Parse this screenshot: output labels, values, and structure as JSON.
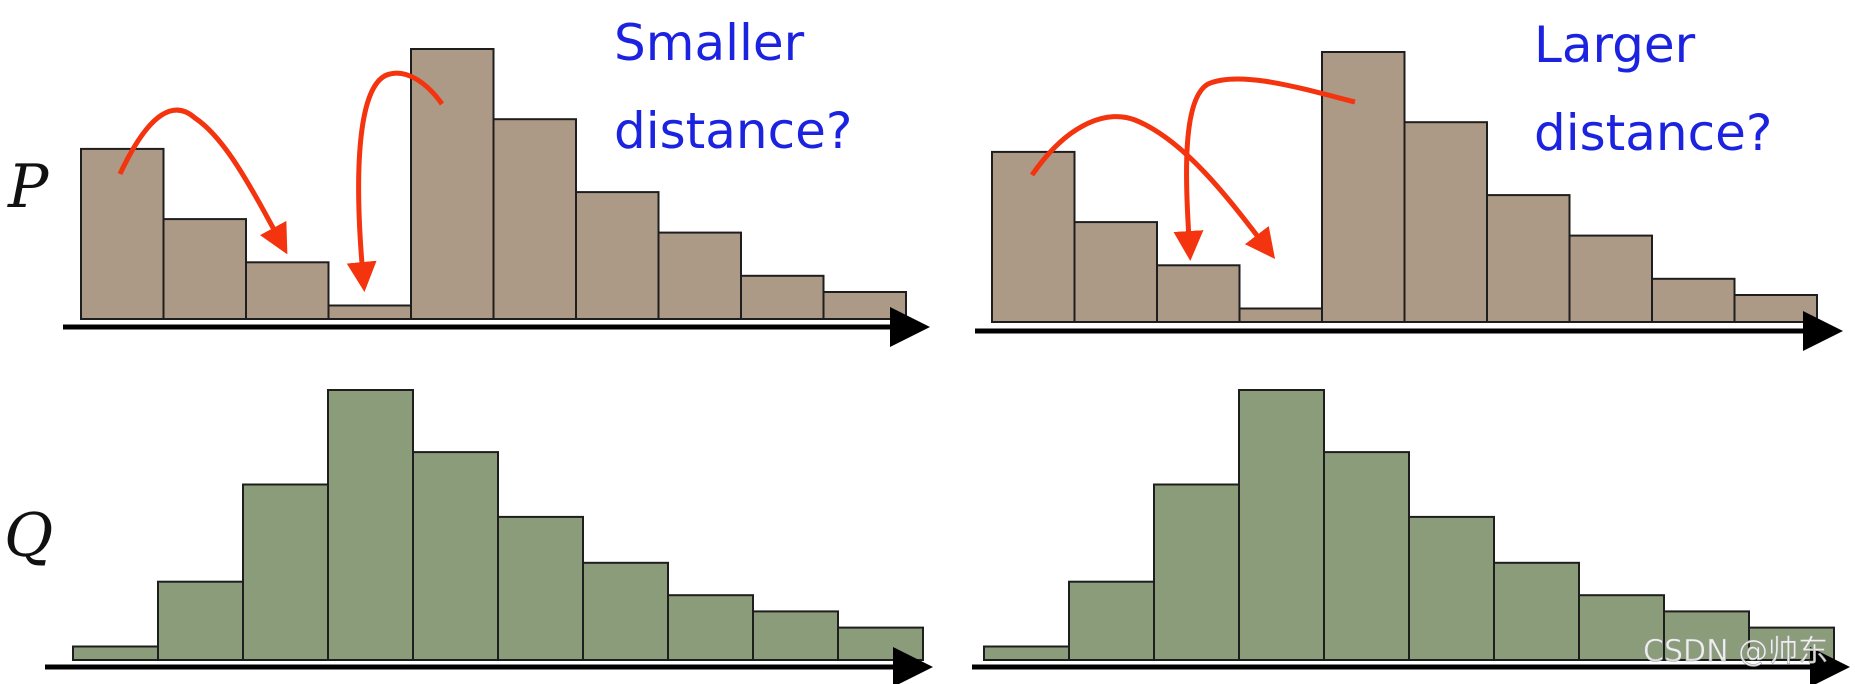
{
  "colors": {
    "p_bar": "#ad9a86",
    "q_bar": "#8a9c79",
    "bar_stroke": "#1e1e1e",
    "axis": "#000000",
    "arrow": "#f4330f",
    "caption": "#1b22e0"
  },
  "labels": {
    "row_p": "P",
    "row_q": "Q",
    "left_caption_line1": "Smaller",
    "left_caption_line2": "distance?",
    "right_caption_line1": "Larger",
    "right_caption_line2": "distance?",
    "watermark": "CSDN @帅东"
  },
  "chart_data": [
    {
      "id": "left-P",
      "type": "bar",
      "series_role": "P",
      "values": [
        0.63,
        0.37,
        0.21,
        0.05,
        1.0,
        0.74,
        0.47,
        0.32,
        0.16,
        0.1
      ],
      "ylim": [
        0,
        1
      ],
      "grid": false,
      "annotations": [
        "arrow from bar 1 to bar 3",
        "arrow from bar 5 to bar 4"
      ],
      "caption": [
        "Smaller",
        "distance?"
      ]
    },
    {
      "id": "right-P",
      "type": "bar",
      "series_role": "P",
      "values": [
        0.63,
        0.37,
        0.21,
        0.05,
        1.0,
        0.74,
        0.47,
        0.32,
        0.16,
        0.1
      ],
      "ylim": [
        0,
        1
      ],
      "grid": false,
      "annotations": [
        "arrow from bar 1 to bar 4",
        "arrow from bar 5 to bar 3"
      ],
      "caption": [
        "Larger",
        "distance?"
      ]
    },
    {
      "id": "left-Q",
      "type": "bar",
      "series_role": "Q",
      "values": [
        0.05,
        0.29,
        0.65,
        1.0,
        0.77,
        0.53,
        0.36,
        0.24,
        0.18,
        0.12
      ],
      "ylim": [
        0,
        1
      ],
      "grid": false
    },
    {
      "id": "right-Q",
      "type": "bar",
      "series_role": "Q",
      "values": [
        0.05,
        0.29,
        0.65,
        1.0,
        0.77,
        0.53,
        0.36,
        0.24,
        0.18,
        0.12
      ],
      "ylim": [
        0,
        1
      ],
      "grid": false
    }
  ]
}
